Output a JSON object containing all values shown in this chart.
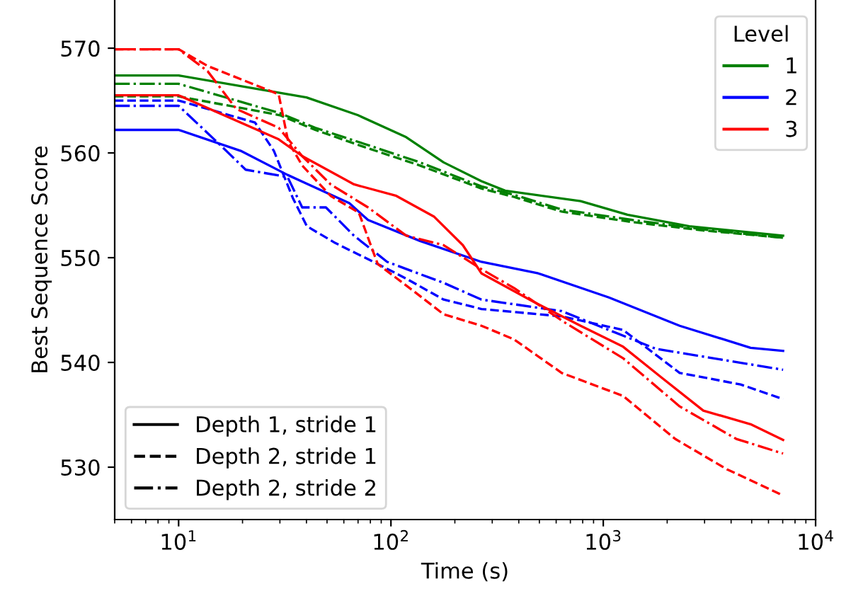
{
  "chart_data": {
    "type": "line",
    "xlabel": "Time (s)",
    "ylabel": "Best Sequence Score",
    "legend_title": "Level",
    "legend": "top right",
    "log": "x",
    "grid": false,
    "xlim": [
      5,
      10000
    ],
    "xticks": [
      {
        "value": 10,
        "label": "10$^{1}$"
      },
      {
        "value": 100,
        "label": "10$^{2}$"
      },
      {
        "value": 1000,
        "label": "10$^{3}$"
      },
      {
        "value": 10000,
        "label": "10$^{4}$"
      }
    ],
    "ylim": [
      525,
      574.6
    ],
    "yticks": [
      530,
      540,
      550,
      560,
      570
    ],
    "annotations": [
      "Depth 1, stride 1",
      "Depth 2, stride 1",
      "Depth 2, stride 2"
    ],
    "series": [
      {
        "name": "1",
        "color": "#008000",
        "line_style": "solid",
        "x": [
          5,
          10,
          40,
          70,
          118,
          177,
          267,
          345,
          782,
          1300,
          2540,
          7030
        ],
        "values": [
          567.4,
          567.4,
          565.3,
          563.6,
          561.5,
          559.1,
          557.3,
          556.4,
          555.4,
          554.1,
          553.0,
          552.1
        ]
      },
      {
        "color": "#008000",
        "line_style": "dashed",
        "x": [
          5,
          10,
          30,
          44,
          74,
          137,
          267,
          380,
          637,
          1370,
          2960,
          7030
        ],
        "values": [
          565.4,
          565.4,
          563.6,
          562.2,
          560.6,
          558.8,
          556.6,
          555.8,
          554.4,
          553.4,
          552.6,
          551.9
        ]
      },
      {
        "color": "#008000",
        "line_style": "dashdot",
        "x": [
          5,
          10,
          30,
          44,
          74,
          137,
          267,
          380,
          637,
          1370,
          2960,
          7030
        ],
        "values": [
          566.6,
          566.6,
          563.8,
          562.4,
          560.9,
          559.1,
          556.8,
          556.0,
          554.6,
          553.6,
          552.7,
          551.9
        ]
      },
      {
        "name": "2",
        "color": "#0000ff",
        "line_style": "solid",
        "x": [
          5,
          10,
          19.6,
          32.6,
          63.7,
          78,
          137,
          267,
          494,
          1063,
          2290,
          4940,
          7030
        ],
        "values": [
          562.2,
          562.2,
          560.2,
          557.9,
          555.2,
          553.6,
          551.6,
          549.6,
          548.5,
          546.2,
          543.5,
          541.4,
          541.1
        ]
      },
      {
        "color": "#0000ff",
        "line_style": "dashed",
        "x": [
          5,
          10,
          22.9,
          28.1,
          34.5,
          40.2,
          54.7,
          86.6,
          118,
          177,
          267,
          637,
          1240,
          2290,
          4430,
          7030
        ],
        "values": [
          565.0,
          565.0,
          562.9,
          560.2,
          555.7,
          553.0,
          551.4,
          549.4,
          548.0,
          546.0,
          545.1,
          544.4,
          543.1,
          539.0,
          537.9,
          536.5
        ]
      },
      {
        "color": "#0000ff",
        "line_style": "dashdot",
        "x": [
          5,
          10,
          16,
          20.7,
          32.6,
          38.2,
          49.4,
          67,
          96,
          177,
          267,
          637,
          1770,
          7030
        ],
        "values": [
          564.5,
          564.5,
          560.6,
          558.4,
          557.7,
          554.8,
          554.8,
          552.1,
          549.6,
          547.6,
          546.0,
          544.9,
          541.3,
          539.3
        ]
      },
      {
        "name": "3",
        "color": "#ff0000",
        "line_style": "solid",
        "x": [
          5,
          10,
          29.6,
          38.2,
          67,
          106,
          160,
          218,
          267,
          469,
          782,
          1240,
          1870,
          2960,
          4940,
          7030
        ],
        "values": [
          565.5,
          565.5,
          561.3,
          559.7,
          557.0,
          555.9,
          553.9,
          551.2,
          548.5,
          545.8,
          543.5,
          541.5,
          538.6,
          535.4,
          534.1,
          532.6
        ]
      },
      {
        "color": "#ff0000",
        "line_style": "dashed",
        "x": [
          5,
          10,
          13.7,
          22.9,
          29.6,
          32.8,
          38.2,
          52,
          70.6,
          86.6,
          130,
          177,
          267,
          380,
          637,
          1240,
          2180,
          3820,
          7030
        ],
        "values": [
          569.9,
          569.9,
          568.3,
          566.5,
          565.6,
          561.1,
          558.8,
          555.9,
          554.3,
          549.4,
          546.7,
          544.6,
          543.5,
          542.2,
          539.0,
          536.8,
          532.7,
          529.8,
          527.3
        ]
      },
      {
        "color": "#ff0000",
        "line_style": "dashdot",
        "x": [
          5,
          10,
          13.7,
          18.7,
          29.6,
          38.2,
          52,
          78,
          118,
          177,
          267,
          380,
          637,
          1240,
          2290,
          4230,
          7030
        ],
        "values": [
          569.9,
          569.9,
          567.8,
          564.2,
          562.4,
          559.7,
          557.0,
          554.8,
          552.1,
          551.2,
          548.9,
          547.1,
          544.0,
          540.4,
          535.8,
          532.7,
          531.3
        ]
      }
    ]
  }
}
